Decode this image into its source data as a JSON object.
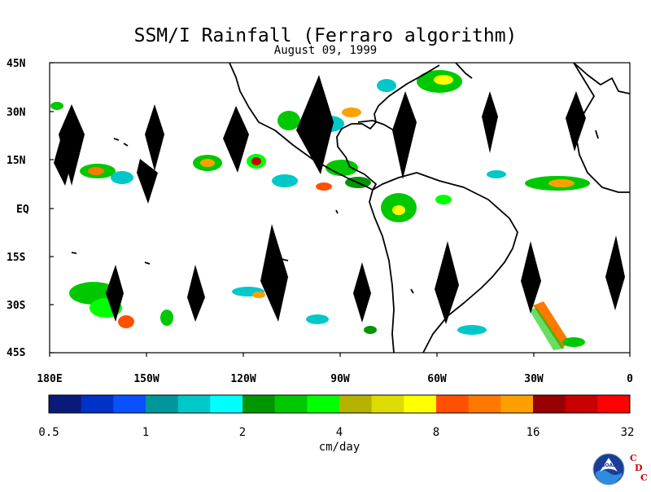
{
  "title": "SSM/I Rainfall (Ferraro algorithm)",
  "date": "August 09, 1999",
  "units": "cm/day",
  "y_axis_labels": [
    "45N",
    "30N",
    "15N",
    "EQ",
    "15S",
    "30S",
    "45S"
  ],
  "x_axis_labels": [
    "180E",
    "150W",
    "120W",
    "90W",
    "60W",
    "30W",
    "0"
  ],
  "colorbar": {
    "tick_labels": [
      "0.5",
      "1",
      "2",
      "4",
      "8",
      "16",
      "32"
    ],
    "colors": [
      "#0a1a7a",
      "#0032c8",
      "#0a50ff",
      "#00969b",
      "#00c8c8",
      "#00ffff",
      "#009600",
      "#00c800",
      "#00ff00",
      "#b4b400",
      "#dcdc00",
      "#ffff00",
      "#ff5000",
      "#ff7800",
      "#ffa000",
      "#960000",
      "#c80000",
      "#ff0000"
    ]
  },
  "logo": {
    "icon": "noaa-logo-icon",
    "noaa_text": "NOAA",
    "letters": [
      "C",
      "D",
      "C"
    ]
  }
}
